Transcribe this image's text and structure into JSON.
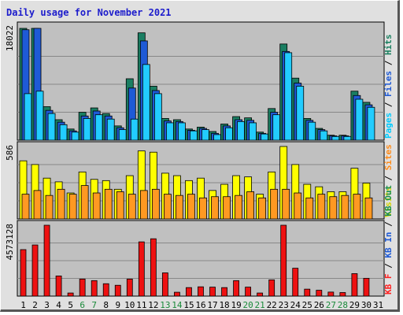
{
  "chart_data": {
    "type": "bar",
    "title": "Daily usage for November 2021",
    "days": [
      "1",
      "2",
      "3",
      "4",
      "5",
      "6",
      "7",
      "8",
      "9",
      "10",
      "11",
      "12",
      "13",
      "14",
      "15",
      "16",
      "17",
      "18",
      "19",
      "20",
      "21",
      "22",
      "23",
      "24",
      "25",
      "26",
      "27",
      "28",
      "29",
      "30",
      "31"
    ],
    "weekend_days": [
      "6",
      "7",
      "13",
      "14",
      "20",
      "21",
      "27",
      "28"
    ],
    "panels": [
      {
        "id": "pages-files-hits",
        "ytick_label": "18022",
        "ymax": 18022,
        "right_label": [
          {
            "text": "Pages",
            "color": "#00ccff"
          },
          {
            "text": " / ",
            "color": "#000000"
          },
          {
            "text": "Files",
            "color": "#1e5ad6"
          },
          {
            "text": " / ",
            "color": "#000000"
          },
          {
            "text": "Hits",
            "color": "#1a8060"
          }
        ],
        "series": [
          {
            "key": "hits",
            "color": "#1a7e62",
            "values": [
              18500,
              19200,
              5400,
              3300,
              1800,
              4500,
              5200,
              4300,
              2300,
              9900,
              17300,
              8700,
              3500,
              3300,
              1800,
              2100,
              1400,
              2600,
              3800,
              3600,
              1300,
              5100,
              15500,
              10000,
              3500,
              1900,
              800,
              800,
              7900,
              6100,
              0
            ]
          },
          {
            "key": "files",
            "color": "#1e5ad6",
            "values": [
              17800,
              18200,
              4800,
              2900,
              1500,
              3900,
              4700,
              3900,
              2000,
              8400,
              16000,
              8000,
              3100,
              3000,
              1600,
              1900,
              1100,
              2300,
              3300,
              3200,
              1100,
              4500,
              14300,
              9200,
              3200,
              1700,
              700,
              700,
              7200,
              5700,
              0
            ]
          },
          {
            "key": "pages",
            "color": "#22ccff",
            "values": [
              7500,
              7900,
              4300,
              2500,
              1300,
              3500,
              4100,
              3400,
              1700,
              3400,
              12200,
              7500,
              2800,
              2800,
              1500,
              1700,
              900,
              2000,
              3000,
              2800,
              1000,
              4100,
              14100,
              8700,
              2900,
              1500,
              600,
              600,
              6600,
              5300,
              0
            ]
          }
        ]
      },
      {
        "id": "visits-sites",
        "ytick_label": "586",
        "ymax": 586,
        "right_label": [
          {
            "text": "Visits",
            "color": "#d4d400"
          },
          {
            "text": " / ",
            "color": "#000000"
          },
          {
            "text": "Sites",
            "color": "#ff8c1a"
          }
        ],
        "series": [
          {
            "key": "visits",
            "color": "#ffff00",
            "values": [
              470,
              440,
              330,
              300,
              210,
              380,
              320,
              310,
              240,
              350,
              550,
              540,
              370,
              350,
              310,
              330,
              230,
              280,
              350,
              340,
              200,
              380,
              610,
              440,
              280,
              260,
              220,
              220,
              410,
              290,
              0
            ]
          },
          {
            "key": "sites",
            "color": "#ff9922",
            "values": [
              200,
              230,
              190,
              240,
              200,
              270,
              210,
              240,
              220,
              200,
              230,
              240,
              200,
              190,
              200,
              170,
              180,
              180,
              190,
              220,
              170,
              240,
              240,
              210,
              170,
              200,
              180,
              190,
              200,
              170,
              0
            ]
          }
        ]
      },
      {
        "id": "kbytes",
        "ytick_label": "4573128",
        "ymax": 4573128,
        "right_label": [
          {
            "text": "KB F",
            "color": "#ff2020"
          },
          {
            "text": " / ",
            "color": "#000000"
          },
          {
            "text": "KB In",
            "color": "#1e5ad6"
          },
          {
            "text": " / ",
            "color": "#000000"
          },
          {
            "text": "KB Out",
            "color": "#1a9050"
          }
        ],
        "series": [
          {
            "key": "kbf",
            "color": "#ee1111",
            "values": [
              3000000,
              3300000,
              5500000,
              1300000,
              200000,
              1100000,
              1000000,
              800000,
              700000,
              1100000,
              3500000,
              3700000,
              1500000,
              250000,
              550000,
              600000,
              580000,
              550000,
              1000000,
              580000,
              200000,
              1050000,
              5200000,
              1800000,
              450000,
              380000,
              260000,
              230000,
              1450000,
              1150000,
              0
            ]
          }
        ]
      }
    ]
  }
}
